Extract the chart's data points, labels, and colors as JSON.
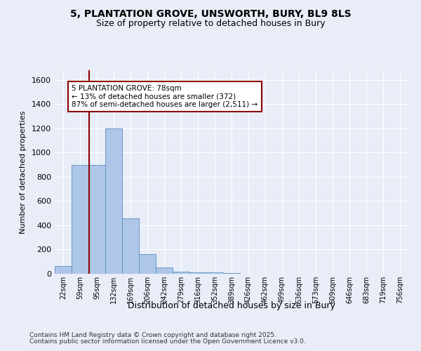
{
  "title1": "5, PLANTATION GROVE, UNSWORTH, BURY, BL9 8LS",
  "title2": "Size of property relative to detached houses in Bury",
  "xlabel": "Distribution of detached houses by size in Bury",
  "ylabel": "Number of detached properties",
  "categories": [
    "22sqm",
    "59sqm",
    "95sqm",
    "132sqm",
    "169sqm",
    "206sqm",
    "242sqm",
    "279sqm",
    "316sqm",
    "352sqm",
    "389sqm",
    "426sqm",
    "462sqm",
    "499sqm",
    "536sqm",
    "573sqm",
    "609sqm",
    "646sqm",
    "683sqm",
    "719sqm",
    "756sqm"
  ],
  "bar_heights": [
    65,
    900,
    900,
    1200,
    460,
    160,
    55,
    20,
    10,
    10,
    5,
    0,
    0,
    0,
    0,
    0,
    0,
    0,
    0,
    0,
    0
  ],
  "bar_color": "#aec6e8",
  "bar_edge_color": "#5a8fc0",
  "vline_x_index": 1.55,
  "vline_color": "#8b0000",
  "annotation_text": "5 PLANTATION GROVE: 78sqm\n← 13% of detached houses are smaller (372)\n87% of semi-detached houses are larger (2,511) →",
  "annotation_box_edge": "#8b0000",
  "ylim": [
    0,
    1680
  ],
  "yticks": [
    0,
    200,
    400,
    600,
    800,
    1000,
    1200,
    1400,
    1600
  ],
  "footer1": "Contains HM Land Registry data © Crown copyright and database right 2025.",
  "footer2": "Contains public sector information licensed under the Open Government Licence v3.0.",
  "bg_color": "#e8edf8",
  "plot_bg_color": "#e8edf8",
  "grid_color": "#ffffff"
}
